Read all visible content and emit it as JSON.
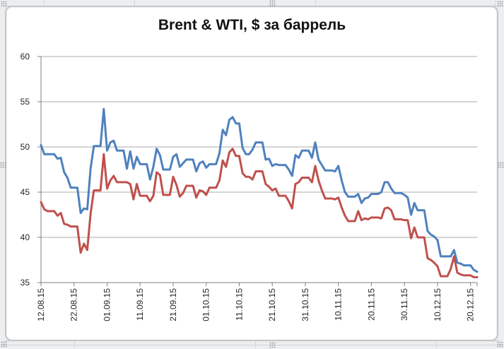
{
  "chart": {
    "title": "Brent & WTI, $ за баррель",
    "frame": "white rounded chart object on excel worksheet, selected (handle dots on edges)"
  },
  "chart_data": {
    "type": "line",
    "title": "Brent & WTI, $ за баррель",
    "xlabel": "",
    "ylabel": "",
    "ylim": [
      35,
      60
    ],
    "y_ticks": [
      35,
      40,
      45,
      50,
      55,
      60
    ],
    "grid": "horizontal",
    "legend": "none",
    "x_is_time": true,
    "x_start": "12.08.15",
    "x_end": "22.12.15",
    "x_step_days": 1,
    "x_tick_every_n_points": 10,
    "x_tick_labels": [
      "12.08.15",
      "22.08.15",
      "01.09.15",
      "11.09.15",
      "21.09.15",
      "01.10.15",
      "11.10.15",
      "21.10.15",
      "31.10.15",
      "10.11.15",
      "20.11.15",
      "30.11.15",
      "10.12.15",
      "20.12.15"
    ],
    "series": [
      {
        "name": "Brent",
        "color": "#4F81BD",
        "values": [
          50.2,
          49.2,
          49.2,
          49.2,
          49.2,
          48.7,
          48.8,
          47.2,
          46.6,
          45.5,
          45.5,
          45.5,
          42.7,
          43.2,
          43.1,
          47.6,
          50.1,
          50.1,
          50.1,
          54.2,
          49.6,
          50.5,
          50.7,
          49.6,
          49.6,
          49.6,
          47.6,
          49.5,
          47.6,
          48.9,
          48.1,
          48.1,
          48.1,
          46.4,
          47.8,
          49.8,
          49.1,
          47.5,
          47.5,
          47.5,
          48.9,
          49.2,
          47.8,
          48.2,
          48.6,
          48.6,
          48.6,
          47.3,
          48.2,
          48.4,
          47.7,
          48.1,
          48.1,
          48.1,
          49.3,
          51.9,
          51.3,
          53.0,
          53.3,
          52.6,
          52.6,
          49.9,
          49.2,
          49.2,
          49.7,
          50.5,
          50.5,
          50.5,
          48.6,
          48.7,
          47.9,
          48.1,
          48.0,
          48.0,
          48.0,
          47.5,
          46.8,
          49.1,
          48.8,
          49.6,
          49.6,
          49.6,
          48.8,
          50.5,
          48.6,
          48.0,
          47.4,
          47.4,
          47.4,
          47.3,
          47.9,
          46.3,
          45.0,
          44.5,
          44.5,
          44.5,
          44.8,
          43.8,
          44.3,
          44.4,
          44.8,
          44.8,
          44.8,
          45.0,
          46.1,
          46.1,
          45.4,
          44.9,
          44.9,
          44.9,
          44.7,
          44.4,
          42.5,
          43.8,
          43.0,
          43.0,
          43.0,
          40.7,
          40.3,
          40.1,
          39.7,
          37.9,
          37.9,
          37.9,
          37.9,
          38.6,
          37.2,
          37.1,
          36.9,
          36.9,
          36.9,
          36.4,
          36.2
        ]
      },
      {
        "name": "WTI",
        "color": "#C0504D",
        "values": [
          43.9,
          43.1,
          42.9,
          42.9,
          42.9,
          42.4,
          42.7,
          41.5,
          41.4,
          41.2,
          41.2,
          41.2,
          38.3,
          39.3,
          38.6,
          42.6,
          45.2,
          45.2,
          45.2,
          49.2,
          45.4,
          46.3,
          46.8,
          46.1,
          46.1,
          46.1,
          46.1,
          45.9,
          44.2,
          45.9,
          44.6,
          44.6,
          44.6,
          44.0,
          44.6,
          47.2,
          46.9,
          44.7,
          44.7,
          44.7,
          46.7,
          45.8,
          44.5,
          44.9,
          45.7,
          45.7,
          45.7,
          44.4,
          45.2,
          45.1,
          44.7,
          45.5,
          45.5,
          45.5,
          46.3,
          48.5,
          47.8,
          49.4,
          49.8,
          49.0,
          49.0,
          47.1,
          46.7,
          46.7,
          46.4,
          47.3,
          47.3,
          47.3,
          45.9,
          45.6,
          45.2,
          45.4,
          44.6,
          44.6,
          44.6,
          44.0,
          43.2,
          45.9,
          46.1,
          46.6,
          46.6,
          46.6,
          46.1,
          47.9,
          46.3,
          45.2,
          44.3,
          44.3,
          44.3,
          44.2,
          44.4,
          43.3,
          42.4,
          41.8,
          41.8,
          41.8,
          42.9,
          41.9,
          42.1,
          42.0,
          42.2,
          42.2,
          42.2,
          42.1,
          43.2,
          43.3,
          43.0,
          42.0,
          42.0,
          42.0,
          41.9,
          41.9,
          39.9,
          41.1,
          40.0,
          40.0,
          40.0,
          37.7,
          37.5,
          37.2,
          36.8,
          35.7,
          35.7,
          35.7,
          36.5,
          37.9,
          36.1,
          35.9,
          35.8,
          35.8,
          35.8,
          35.6,
          35.6
        ]
      }
    ],
    "style": {
      "gridline_color": "#ABABAB",
      "axis_color": "#7F7F7F",
      "tick_label_color": "#262626",
      "line_width": 3
    }
  }
}
